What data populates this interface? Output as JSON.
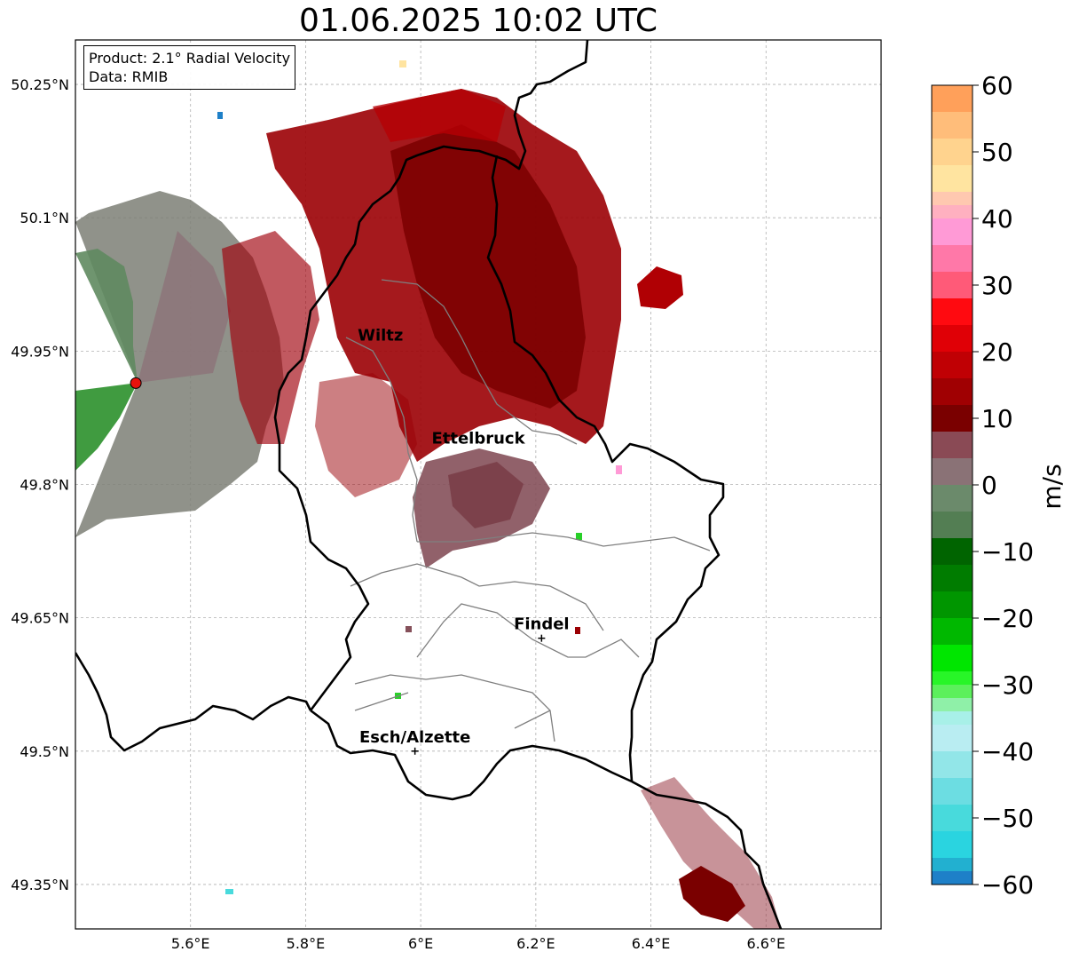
{
  "title": "01.06.2025 10:02 UTC",
  "info_box": {
    "product_line": "Product: 2.1° Radial Velocity",
    "data_line": "Data: RMIB"
  },
  "map": {
    "lon_range": [
      5.4,
      6.8
    ],
    "lat_range": [
      49.3,
      50.3
    ],
    "lon_ticks": [
      {
        "value": 5.6,
        "label": "5.6°E"
      },
      {
        "value": 5.8,
        "label": "5.8°E"
      },
      {
        "value": 6.0,
        "label": "6°E"
      },
      {
        "value": 6.2,
        "label": "6.2°E"
      },
      {
        "value": 6.4,
        "label": "6.4°E"
      },
      {
        "value": 6.6,
        "label": "6.6°E"
      }
    ],
    "lat_ticks": [
      {
        "value": 50.25,
        "label": "50.25°N"
      },
      {
        "value": 50.1,
        "label": "50.1°N"
      },
      {
        "value": 49.95,
        "label": "49.95°N"
      },
      {
        "value": 49.8,
        "label": "49.8°N"
      },
      {
        "value": 49.65,
        "label": "49.65°N"
      },
      {
        "value": 49.5,
        "label": "49.5°N"
      },
      {
        "value": 49.35,
        "label": "49.35°N"
      }
    ],
    "radar_site": {
      "lon": 5.505,
      "lat": 49.914,
      "color": "#e8120c"
    },
    "cities": [
      {
        "name": "Wiltz",
        "lon": 5.93,
        "lat": 49.966,
        "marker": false
      },
      {
        "name": "Ettelbruck",
        "lon": 6.1,
        "lat": 49.85,
        "marker": false
      },
      {
        "name": "Findel",
        "lon": 6.21,
        "lat": 49.627,
        "marker": true
      },
      {
        "name": "Esch/Alzette",
        "lon": 5.99,
        "lat": 49.5,
        "marker": true
      }
    ]
  },
  "colorbar": {
    "label": "m/s",
    "min": -60,
    "max": 60,
    "ticks": [
      {
        "value": 60,
        "label": "60"
      },
      {
        "value": 50,
        "label": "50"
      },
      {
        "value": 40,
        "label": "40"
      },
      {
        "value": 30,
        "label": "30"
      },
      {
        "value": 20,
        "label": "20"
      },
      {
        "value": 10,
        "label": "10"
      },
      {
        "value": 0,
        "label": "0"
      },
      {
        "value": -10,
        "label": "−10"
      },
      {
        "value": -20,
        "label": "−20"
      },
      {
        "value": -30,
        "label": "−30"
      },
      {
        "value": -40,
        "label": "−40"
      },
      {
        "value": -50,
        "label": "−50"
      },
      {
        "value": -60,
        "label": "−60"
      }
    ],
    "segments": [
      {
        "from": 56,
        "to": 60,
        "color": "#ffa05a"
      },
      {
        "from": 52,
        "to": 56,
        "color": "#ffbd7a"
      },
      {
        "from": 48,
        "to": 52,
        "color": "#ffd38e"
      },
      {
        "from": 44,
        "to": 48,
        "color": "#ffe4a0"
      },
      {
        "from": 42,
        "to": 44,
        "color": "#ffc8b0"
      },
      {
        "from": 40,
        "to": 42,
        "color": "#ffb0c0"
      },
      {
        "from": 36,
        "to": 40,
        "color": "#ff9ad6"
      },
      {
        "from": 32,
        "to": 36,
        "color": "#ff78a8"
      },
      {
        "from": 28,
        "to": 32,
        "color": "#ff5a78"
      },
      {
        "from": 24,
        "to": 28,
        "color": "#ff0a10"
      },
      {
        "from": 20,
        "to": 24,
        "color": "#e00006"
      },
      {
        "from": 16,
        "to": 20,
        "color": "#c00004"
      },
      {
        "from": 12,
        "to": 16,
        "color": "#a00002"
      },
      {
        "from": 8,
        "to": 12,
        "color": "#7a0000"
      },
      {
        "from": 4,
        "to": 8,
        "color": "#8a4a55"
      },
      {
        "from": 0,
        "to": 4,
        "color": "#8a7276"
      },
      {
        "from": -4,
        "to": 0,
        "color": "#6b8a6b"
      },
      {
        "from": -8,
        "to": -4,
        "color": "#537e53"
      },
      {
        "from": -12,
        "to": -8,
        "color": "#006400"
      },
      {
        "from": -16,
        "to": -12,
        "color": "#007c00"
      },
      {
        "from": -20,
        "to": -16,
        "color": "#009600"
      },
      {
        "from": -24,
        "to": -20,
        "color": "#00b800"
      },
      {
        "from": -28,
        "to": -24,
        "color": "#00e600"
      },
      {
        "from": -30,
        "to": -28,
        "color": "#28f528"
      },
      {
        "from": -32,
        "to": -30,
        "color": "#5cf05c"
      },
      {
        "from": -34,
        "to": -32,
        "color": "#8ff0a8"
      },
      {
        "from": -36,
        "to": -34,
        "color": "#a8f0e8"
      },
      {
        "from": -40,
        "to": -36,
        "color": "#b9edf2"
      },
      {
        "from": -44,
        "to": -40,
        "color": "#92e6e8"
      },
      {
        "from": -48,
        "to": -44,
        "color": "#6cdde2"
      },
      {
        "from": -52,
        "to": -48,
        "color": "#48dadc"
      },
      {
        "from": -56,
        "to": -52,
        "color": "#2ad4e0"
      },
      {
        "from": -58,
        "to": -56,
        "color": "#22b0d0"
      },
      {
        "from": -60,
        "to": -58,
        "color": "#1e80c8"
      }
    ]
  }
}
